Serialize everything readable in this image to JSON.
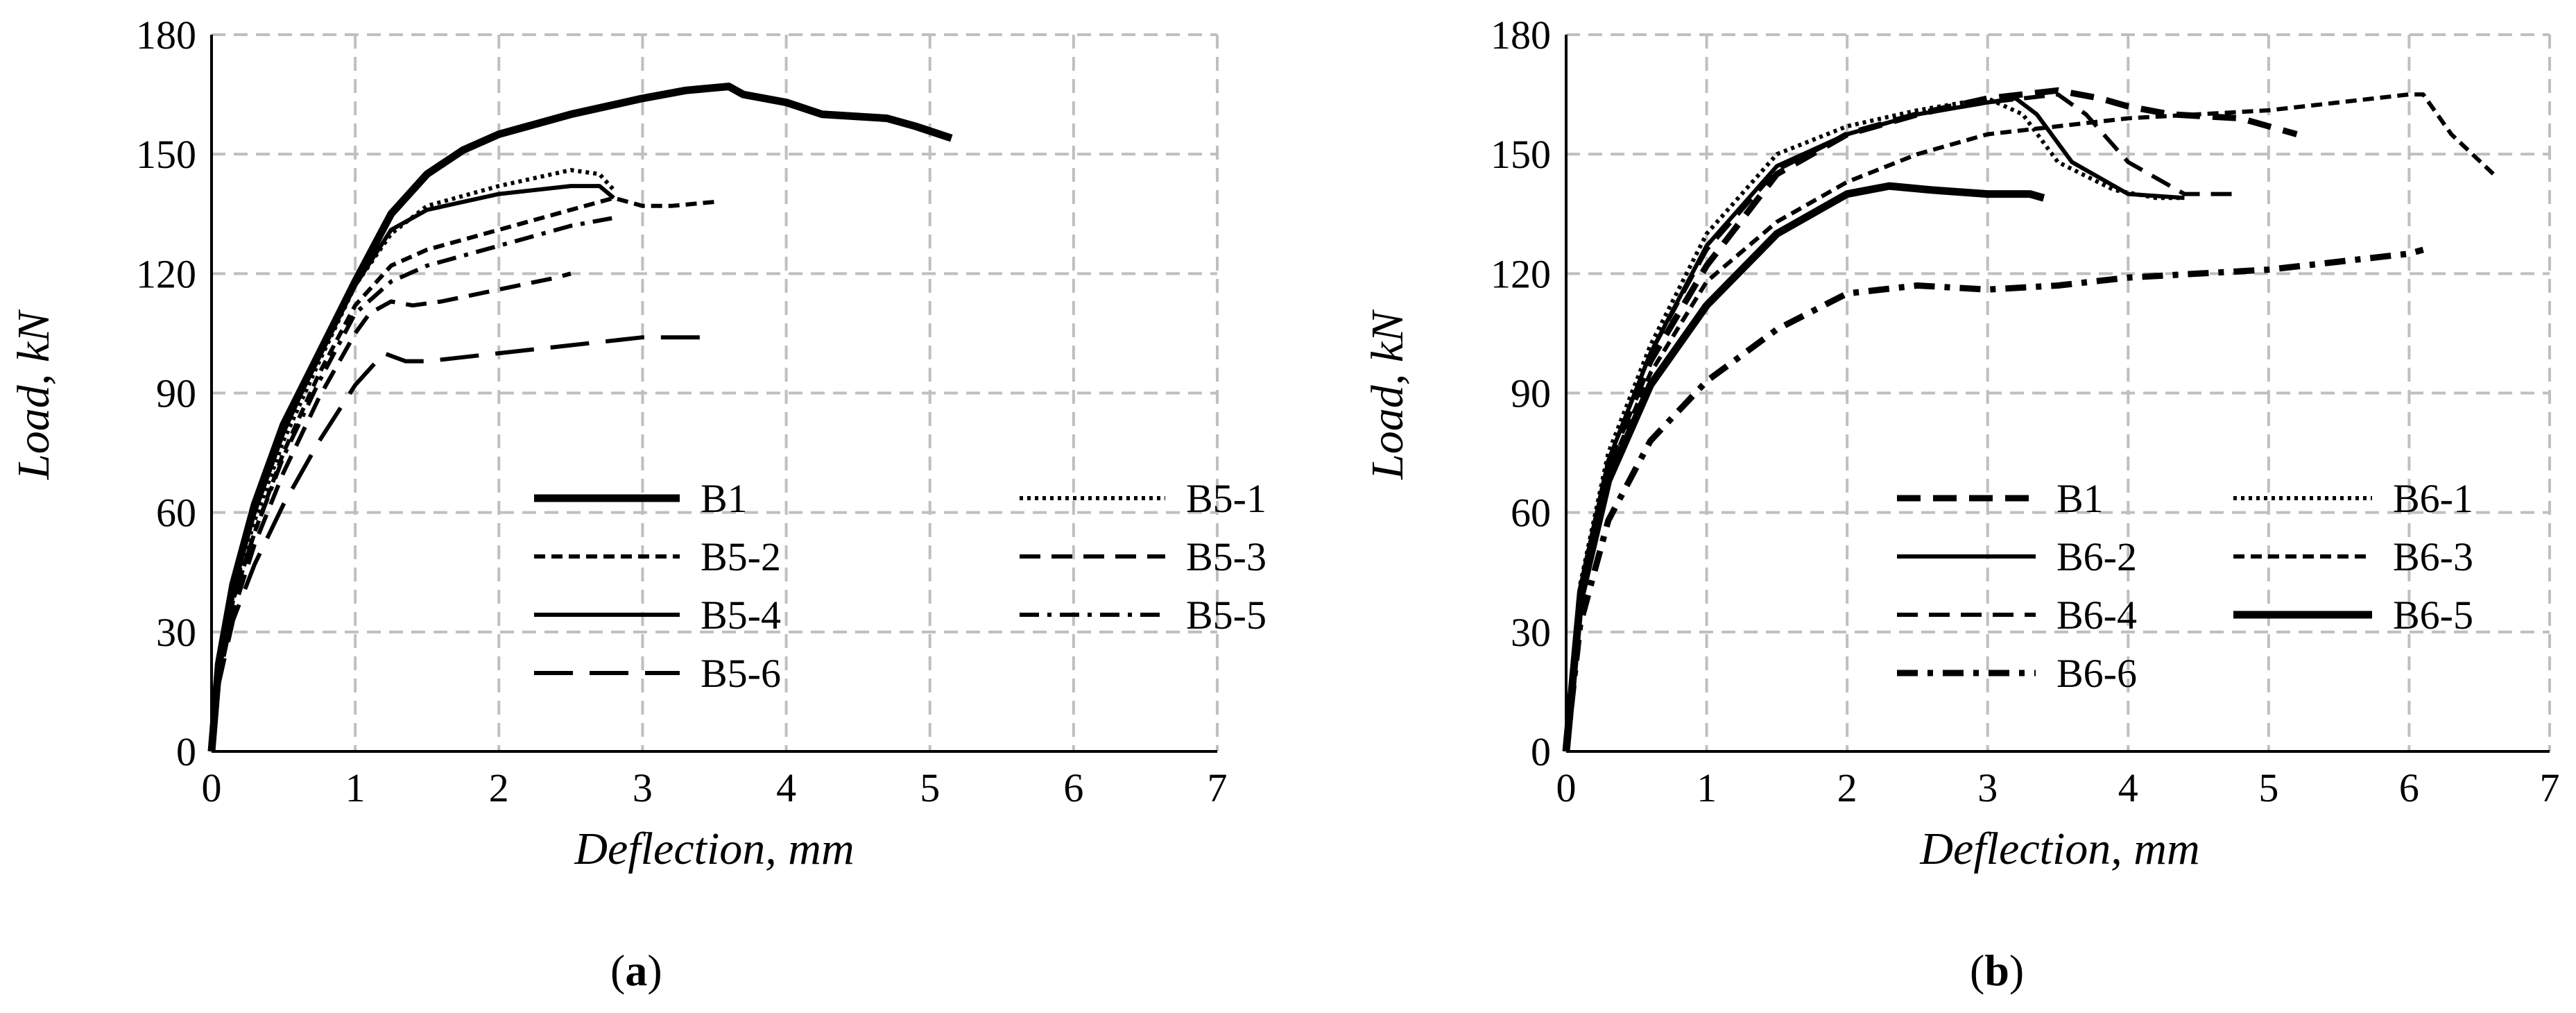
{
  "chart_data": [
    {
      "type": "line",
      "panel_label": "a",
      "xlabel": "Deflection, mm",
      "ylabel": "Load, kN",
      "xlim": [
        0,
        7
      ],
      "ylim": [
        0,
        180
      ],
      "xticks": [
        0,
        1,
        2,
        3,
        4,
        5,
        6,
        7
      ],
      "yticks": [
        0,
        30,
        60,
        90,
        120,
        150,
        180
      ],
      "grid": true,
      "legend_position": "bottom-right",
      "series": [
        {
          "name": "B1",
          "style": "solid-thick",
          "points": [
            [
              0,
              0
            ],
            [
              0.05,
              22
            ],
            [
              0.15,
              42
            ],
            [
              0.3,
              62
            ],
            [
              0.5,
              82
            ],
            [
              0.75,
              100
            ],
            [
              1.0,
              118
            ],
            [
              1.25,
              135
            ],
            [
              1.5,
              145
            ],
            [
              1.75,
              151
            ],
            [
              2.0,
              155
            ],
            [
              2.5,
              160
            ],
            [
              3.0,
              164
            ],
            [
              3.3,
              166
            ],
            [
              3.6,
              167
            ],
            [
              3.7,
              165
            ],
            [
              4.0,
              163
            ],
            [
              4.25,
              160
            ],
            [
              4.7,
              159
            ],
            [
              4.9,
              157
            ],
            [
              5.15,
              154
            ]
          ]
        },
        {
          "name": "B5-1",
          "style": "dotted",
          "points": [
            [
              0,
              0
            ],
            [
              0.05,
              20
            ],
            [
              0.15,
              40
            ],
            [
              0.3,
              58
            ],
            [
              0.5,
              78
            ],
            [
              0.75,
              98
            ],
            [
              1.0,
              117
            ],
            [
              1.25,
              130
            ],
            [
              1.5,
              137
            ],
            [
              2.0,
              142
            ],
            [
              2.5,
              146
            ],
            [
              2.7,
              145
            ],
            [
              2.8,
              141
            ]
          ]
        },
        {
          "name": "B5-2",
          "style": "short-dash",
          "points": [
            [
              0,
              0
            ],
            [
              0.05,
              20
            ],
            [
              0.15,
              38
            ],
            [
              0.3,
              55
            ],
            [
              0.5,
              75
            ],
            [
              0.75,
              95
            ],
            [
              1.0,
              112
            ],
            [
              1.25,
              122
            ],
            [
              1.5,
              126
            ],
            [
              2.0,
              131
            ],
            [
              2.5,
              136
            ],
            [
              2.8,
              139
            ],
            [
              3.0,
              137
            ],
            [
              3.2,
              137
            ],
            [
              3.5,
              138
            ]
          ]
        },
        {
          "name": "B5-3",
          "style": "dash",
          "points": [
            [
              0,
              0
            ],
            [
              0.05,
              18
            ],
            [
              0.15,
              35
            ],
            [
              0.3,
              52
            ],
            [
              0.5,
              70
            ],
            [
              0.75,
              89
            ],
            [
              1.0,
              105
            ],
            [
              1.1,
              110
            ],
            [
              1.25,
              113
            ],
            [
              1.4,
              112
            ],
            [
              1.6,
              113
            ],
            [
              2.0,
              116
            ],
            [
              2.4,
              119
            ],
            [
              2.5,
              120
            ]
          ]
        },
        {
          "name": "B5-4",
          "style": "solid-thin",
          "points": [
            [
              0,
              0
            ],
            [
              0.05,
              21
            ],
            [
              0.15,
              41
            ],
            [
              0.3,
              60
            ],
            [
              0.5,
              80
            ],
            [
              0.75,
              100
            ],
            [
              1.0,
              117
            ],
            [
              1.25,
              131
            ],
            [
              1.5,
              136
            ],
            [
              2.0,
              140
            ],
            [
              2.5,
              142
            ],
            [
              2.7,
              142
            ],
            [
              2.8,
              139
            ]
          ]
        },
        {
          "name": "B5-5",
          "style": "dash-dot",
          "points": [
            [
              0,
              0
            ],
            [
              0.05,
              20
            ],
            [
              0.15,
              38
            ],
            [
              0.3,
              55
            ],
            [
              0.5,
              74
            ],
            [
              0.75,
              93
            ],
            [
              1.0,
              110
            ],
            [
              1.25,
              118
            ],
            [
              1.5,
              122
            ],
            [
              2.0,
              127
            ],
            [
              2.5,
              132
            ],
            [
              2.8,
              134
            ]
          ]
        },
        {
          "name": "B5-6",
          "style": "long-dash",
          "points": [
            [
              0,
              0
            ],
            [
              0.05,
              17
            ],
            [
              0.15,
              33
            ],
            [
              0.3,
              47
            ],
            [
              0.5,
              62
            ],
            [
              0.75,
              78
            ],
            [
              1.0,
              92
            ],
            [
              1.2,
              100
            ],
            [
              1.35,
              98
            ],
            [
              1.5,
              98
            ],
            [
              2.0,
              100
            ],
            [
              2.5,
              102
            ],
            [
              3.0,
              104
            ],
            [
              3.45,
              104
            ]
          ]
        }
      ]
    },
    {
      "type": "line",
      "panel_label": "b",
      "xlabel": "Deflection, mm",
      "ylabel": "Load, kN",
      "xlim": [
        0,
        7
      ],
      "ylim": [
        0,
        180
      ],
      "xticks": [
        0,
        1,
        2,
        3,
        4,
        5,
        6,
        7
      ],
      "yticks": [
        0,
        30,
        60,
        90,
        120,
        150,
        180
      ],
      "grid": true,
      "legend_position": "bottom-right",
      "series": [
        {
          "name": "B1",
          "style": "dash-thick",
          "points": [
            [
              0,
              0
            ],
            [
              0.1,
              40
            ],
            [
              0.3,
              72
            ],
            [
              0.6,
              98
            ],
            [
              1.0,
              122
            ],
            [
              1.5,
              145
            ],
            [
              2.0,
              155
            ],
            [
              2.5,
              160
            ],
            [
              3.0,
              164
            ],
            [
              3.5,
              166
            ],
            [
              3.8,
              164
            ],
            [
              4.0,
              162
            ],
            [
              4.3,
              160
            ],
            [
              4.8,
              159
            ],
            [
              5.2,
              155
            ]
          ]
        },
        {
          "name": "B6-1",
          "style": "dotted",
          "points": [
            [
              0,
              0
            ],
            [
              0.1,
              42
            ],
            [
              0.3,
              75
            ],
            [
              0.6,
              102
            ],
            [
              1.0,
              130
            ],
            [
              1.5,
              150
            ],
            [
              2.0,
              157
            ],
            [
              2.5,
              161
            ],
            [
              3.0,
              164
            ],
            [
              3.25,
              160
            ],
            [
              3.5,
              148
            ],
            [
              3.9,
              141
            ],
            [
              4.2,
              139
            ],
            [
              4.4,
              139
            ]
          ]
        },
        {
          "name": "B6-2",
          "style": "solid-thin",
          "points": [
            [
              0,
              0
            ],
            [
              0.1,
              41
            ],
            [
              0.3,
              73
            ],
            [
              0.6,
              100
            ],
            [
              1.0,
              127
            ],
            [
              1.5,
              147
            ],
            [
              2.0,
              155
            ],
            [
              2.5,
              160
            ],
            [
              3.0,
              163
            ],
            [
              3.2,
              164
            ],
            [
              3.35,
              160
            ],
            [
              3.6,
              148
            ],
            [
              4.0,
              140
            ],
            [
              4.4,
              139
            ]
          ]
        },
        {
          "name": "B6-3",
          "style": "short-dash",
          "points": [
            [
              0,
              0
            ],
            [
              0.1,
              40
            ],
            [
              0.3,
              70
            ],
            [
              0.6,
              95
            ],
            [
              1.0,
              118
            ],
            [
              1.5,
              133
            ],
            [
              2.0,
              143
            ],
            [
              2.5,
              150
            ],
            [
              3.0,
              155
            ],
            [
              3.5,
              157
            ],
            [
              4.0,
              159
            ],
            [
              5.0,
              161
            ],
            [
              5.5,
              163
            ],
            [
              6.0,
              165
            ],
            [
              6.1,
              165
            ],
            [
              6.3,
              155
            ],
            [
              6.6,
              145
            ]
          ]
        },
        {
          "name": "B6-4",
          "style": "dash",
          "points": [
            [
              0,
              0
            ],
            [
              0.1,
              41
            ],
            [
              0.3,
              73
            ],
            [
              0.6,
              100
            ],
            [
              1.0,
              126
            ],
            [
              1.5,
              146
            ],
            [
              2.0,
              155
            ],
            [
              2.5,
              160
            ],
            [
              3.0,
              163
            ],
            [
              3.5,
              165
            ],
            [
              3.7,
              160
            ],
            [
              4.0,
              148
            ],
            [
              4.4,
              140
            ],
            [
              4.8,
              140
            ]
          ]
        },
        {
          "name": "B6-5",
          "style": "solid-thick",
          "points": [
            [
              0,
              0
            ],
            [
              0.1,
              38
            ],
            [
              0.3,
              68
            ],
            [
              0.6,
              92
            ],
            [
              1.0,
              112
            ],
            [
              1.5,
              130
            ],
            [
              2.0,
              140
            ],
            [
              2.3,
              142
            ],
            [
              2.6,
              141
            ],
            [
              3.0,
              140
            ],
            [
              3.3,
              140
            ],
            [
              3.4,
              139
            ]
          ]
        },
        {
          "name": "B6-6",
          "style": "dash-dot-thick",
          "points": [
            [
              0,
              0
            ],
            [
              0.1,
              32
            ],
            [
              0.3,
              58
            ],
            [
              0.6,
              78
            ],
            [
              1.0,
              93
            ],
            [
              1.5,
              106
            ],
            [
              2.0,
              115
            ],
            [
              2.5,
              117
            ],
            [
              3.0,
              116
            ],
            [
              3.5,
              117
            ],
            [
              4.0,
              119
            ],
            [
              4.5,
              120
            ],
            [
              5.0,
              121
            ],
            [
              5.5,
              123
            ],
            [
              6.0,
              125
            ],
            [
              6.1,
              126
            ]
          ]
        }
      ]
    }
  ]
}
